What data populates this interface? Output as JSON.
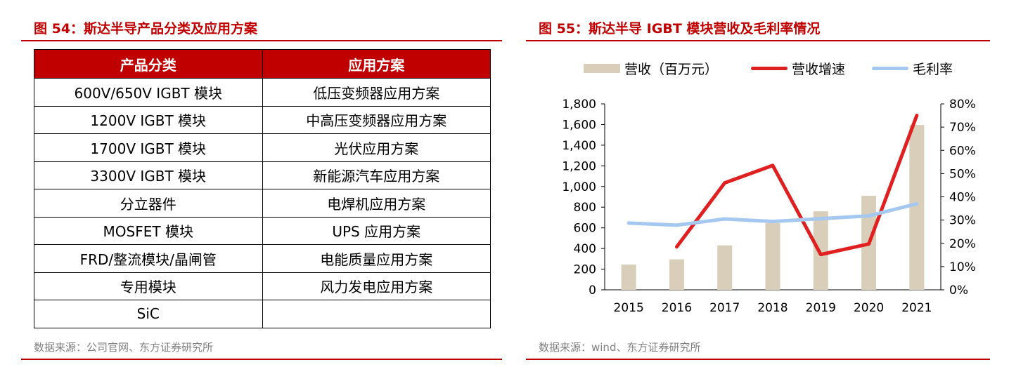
{
  "left": {
    "title": "图 54：斯达半导产品分类及应用方案",
    "table": {
      "headers": [
        "产品分类",
        "应用方案"
      ],
      "rows": [
        [
          "600V/650V IGBT 模块",
          "低压变频器应用方案"
        ],
        [
          "1200V IGBT 模块",
          "中高压变频器应用方案"
        ],
        [
          "1700V IGBT 模块",
          "光伏应用方案"
        ],
        [
          "3300V IGBT 模块",
          "新能源汽车应用方案"
        ],
        [
          "分立器件",
          "电焊机应用方案"
        ],
        [
          "MOSFET 模块",
          "UPS 应用方案"
        ],
        [
          "FRD/整流模块/晶闸管",
          "电能质量应用方案"
        ],
        [
          "专用模块",
          "风力发电应用方案"
        ],
        [
          "SiC",
          ""
        ]
      ]
    },
    "source": "数据来源：公司官网、东方证券研究所"
  },
  "right": {
    "title": "图 55：斯达半导 IGBT 模块营收及毛利率情况",
    "source": "数据来源：wind、东方证券研究所"
  },
  "chart_data": {
    "type": "bar",
    "title": "",
    "categories": [
      "2015",
      "2016",
      "2017",
      "2018",
      "2019",
      "2020",
      "2021"
    ],
    "series": [
      {
        "name": "营收（百万元）",
        "type": "bar",
        "axis": "left",
        "color": "#d9ceb9",
        "values": [
          245,
          295,
          430,
          645,
          760,
          910,
          1595
        ]
      },
      {
        "name": "营收增速",
        "type": "line",
        "axis": "right",
        "color": "#e02020",
        "values": [
          null,
          0.185,
          0.46,
          0.535,
          0.152,
          0.197,
          0.75
        ]
      },
      {
        "name": "毛利率",
        "type": "line",
        "axis": "right",
        "color": "#a4c8f0",
        "values": [
          0.287,
          0.278,
          0.305,
          0.294,
          0.306,
          0.318,
          0.37
        ]
      }
    ],
    "y_left": {
      "min": 0,
      "max": 1800,
      "ticks": [
        "0",
        "200",
        "400",
        "600",
        "800",
        "1,000",
        "1,200",
        "1,400",
        "1,600",
        "1,800"
      ]
    },
    "y_right": {
      "min": 0,
      "max": 0.8,
      "ticks": [
        "0%",
        "10%",
        "20%",
        "30%",
        "40%",
        "50%",
        "60%",
        "70%",
        "80%"
      ]
    },
    "grid": false,
    "legend_position": "top"
  }
}
